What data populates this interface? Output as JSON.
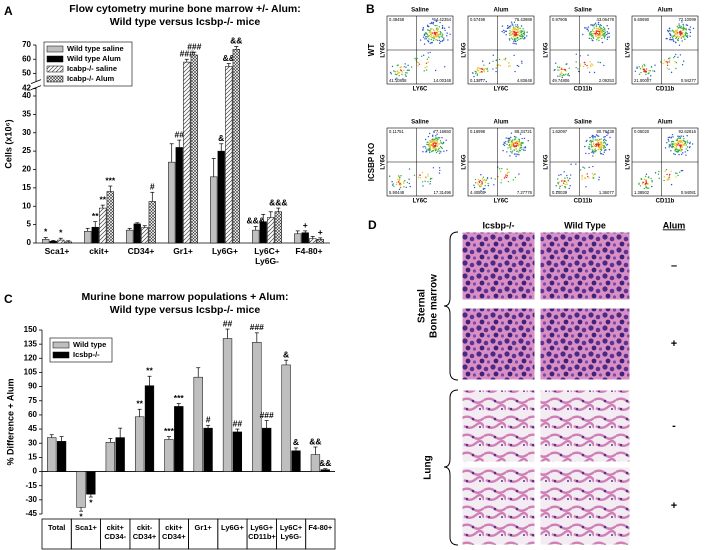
{
  "chart_data": [
    {
      "label": "A",
      "type": "bar",
      "title": "Flow cytometry murine bone marrow +/- Alum:",
      "subtitle": "Wild type versus Icsbp-/- mice",
      "y_label": "Cells (x10⁶)",
      "categories": [
        "Sca1+",
        "ckit+",
        "CD34+",
        "Gr1+",
        "Ly6G+",
        "Ly6C+ Ly6G-",
        "F4-80+"
      ],
      "series": [
        {
          "name": "Wild type saline",
          "color": "#bfbfbf",
          "values": [
            1,
            3.2,
            3.5,
            22,
            18,
            3.5,
            2.5
          ],
          "errors": [
            0.5,
            0.8,
            0.5,
            5,
            5,
            1,
            0.8
          ],
          "significance": [
            "*",
            null,
            null,
            null,
            null,
            "&&&",
            null
          ]
        },
        {
          "name": "Wild type Alum",
          "color": "#000000",
          "values": [
            0.5,
            4.3,
            5.2,
            26,
            25,
            5.8,
            2.8
          ],
          "errors": [
            0.2,
            1.5,
            0.3,
            2,
            2,
            2,
            0.5
          ],
          "significance": [
            null,
            "**",
            "",
            "##",
            "&",
            null,
            "+"
          ]
        },
        {
          "name": "Icabp-/- saline",
          "color": "#ffffff",
          "pattern": "hatch",
          "values": [
            0.8,
            9.5,
            4.2,
            58,
            55,
            7,
            1.2
          ],
          "errors": [
            0.5,
            0.8,
            0.5,
            2,
            2,
            1.5,
            0.6
          ],
          "significance": [
            "*",
            "**",
            null,
            "###",
            "&&",
            null,
            null
          ]
        },
        {
          "name": "Icabp-/- Alum",
          "color": "#ffffff",
          "pattern": "crosshatch",
          "values": [
            0.3,
            14,
            11.3,
            63,
            67,
            8.5,
            1
          ],
          "errors": [
            0.3,
            1.5,
            2.5,
            2,
            2,
            1,
            0.4
          ],
          "significance": [
            null,
            "***",
            "#",
            "###",
            "&&",
            "&&&",
            "+"
          ]
        }
      ],
      "ylim": [
        0,
        70
      ],
      "ybreak": [
        42,
        45
      ],
      "yticks": [
        0,
        5,
        10,
        15,
        20,
        25,
        30,
        35,
        40,
        42,
        50,
        60,
        70
      ],
      "legend": "upper left"
    },
    {
      "label": "C",
      "type": "bar",
      "title": "Murine bone marrow populations + Alum:",
      "subtitle": "Wild type versus Icsbp-/- mice",
      "y_label": "% Difference + Alum",
      "categories": [
        "Total",
        "Sca1+",
        "ckit+ CD34-",
        "ckit- CD34+",
        "ckit+ CD34+",
        "Gr1+",
        "Ly6G+",
        "Ly6G+ CD11b+",
        "Ly6C+ Ly6G-",
        "F4-80+"
      ],
      "series": [
        {
          "name": "Wild type",
          "color": "#bfbfbf",
          "values": [
            36,
            -38,
            31,
            58,
            34,
            100,
            141,
            137,
            113,
            18
          ],
          "errors": [
            3,
            4,
            4,
            8,
            3,
            10,
            10,
            10,
            5,
            8
          ],
          "significance": [
            null,
            "*",
            null,
            "**",
            "***",
            null,
            "##",
            "###",
            "&",
            "&&"
          ]
        },
        {
          "name": "Icsbp-/-",
          "color": "#000000",
          "values": [
            32,
            -24,
            36,
            91,
            69,
            46,
            42,
            46,
            22,
            2
          ],
          "errors": [
            5,
            3,
            10,
            10,
            3,
            3,
            3,
            8,
            3,
            1
          ],
          "significance": [
            null,
            "*",
            null,
            "**",
            "***",
            "#",
            "##",
            "###",
            "&",
            "&&"
          ]
        }
      ],
      "ylim": [
        -45,
        150
      ],
      "yticks": [
        -45,
        -30,
        -15,
        0,
        15,
        30,
        45,
        60,
        75,
        90,
        105,
        120,
        135,
        150
      ],
      "legend": "upper left",
      "category_table": true
    }
  ],
  "flow_cytometry": {
    "label": "B",
    "rows": [
      {
        "name": "WT",
        "plots": [
          {
            "condition": "Saline",
            "x_label": "LY6C",
            "y_label": "LY6G",
            "quadrants": [
              "0.48458",
              "64.42354",
              "41.10848",
              "14.00348"
            ]
          },
          {
            "condition": "Alum",
            "x_label": "LY6C",
            "y_label": "LY6G",
            "quadrants": [
              "0.57499",
              "76.43989",
              "0.13677",
              "4.83648"
            ]
          },
          {
            "condition": "Saline",
            "x_label": "CD11b",
            "y_label": "LY6G",
            "quadrants": [
              "0.97906",
              "43.06478",
              "49.74806",
              "2.09253"
            ]
          },
          {
            "condition": "Alum",
            "x_label": "CD11b",
            "y_label": "LY6G",
            "quadrants": [
              "5.60690",
              "72.10099",
              "21.00007",
              "0.94277"
            ]
          }
        ]
      },
      {
        "name": "ICSBP KO",
        "plots": [
          {
            "condition": "Saline",
            "x_label": "LY6C",
            "y_label": "LY6G",
            "quadrants": [
              "0.11751",
              "77.16650",
              "5.90448",
              "17.31496"
            ]
          },
          {
            "condition": "Alum",
            "x_label": "LY6C",
            "y_label": "LY6G",
            "quadrants": [
              "0.16996",
              "88.34721",
              "4.40500",
              "7.27776"
            ]
          },
          {
            "condition": "Saline",
            "x_label": "CD11b",
            "y_label": "LY6G",
            "quadrants": [
              "1.62097",
              "80.76438",
              "0.10039",
              "1.36077"
            ]
          },
          {
            "condition": "Alum",
            "x_label": "CD11b",
            "y_label": "LY6G",
            "quadrants": [
              "0.05020",
              "92.62816",
              "1.38502",
              "0.94081"
            ]
          }
        ]
      }
    ]
  },
  "histology": {
    "label": "D",
    "columns": [
      "Icsbp-/-",
      "Wild Type"
    ],
    "treatment_header": "Alum",
    "groups": [
      {
        "name": [
          "Sternal",
          "Bone marrow"
        ],
        "tissue": "marrow",
        "rows": [
          "–",
          "+"
        ]
      },
      {
        "name": [
          "Lung"
        ],
        "tissue": "lung",
        "rows": [
          "-",
          "+"
        ]
      }
    ]
  }
}
